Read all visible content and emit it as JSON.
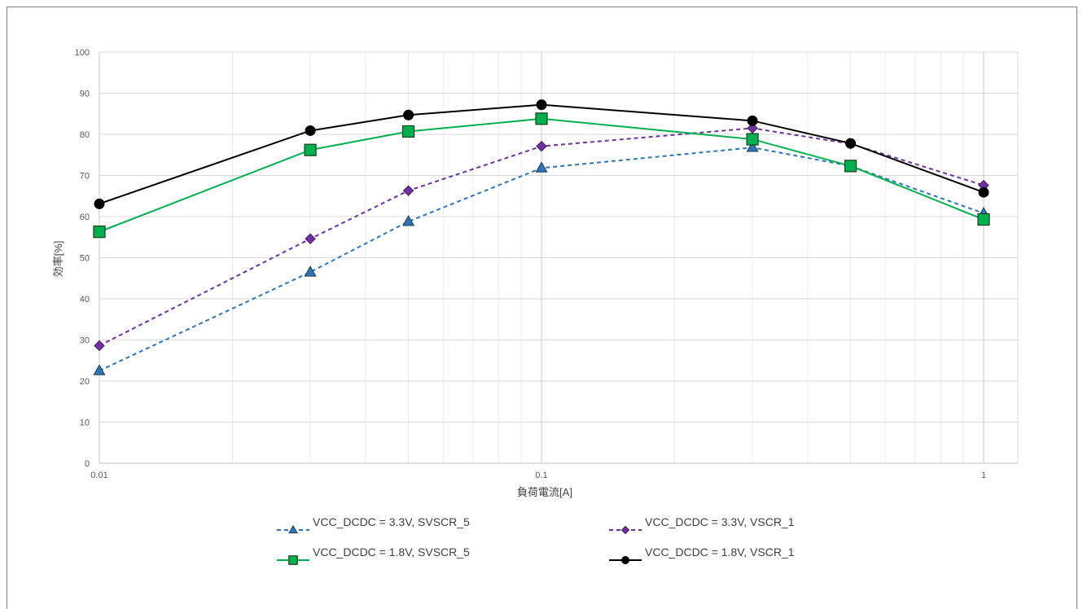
{
  "chart_data": {
    "type": "line",
    "title": "",
    "xlabel": "負荷電流[A]",
    "ylabel": "効率[%]",
    "xscale": "log",
    "xlim": [
      0.01,
      1.3
    ],
    "ylim": [
      0,
      100
    ],
    "yticks": [
      0,
      10,
      20,
      30,
      40,
      50,
      60,
      70,
      80,
      90,
      100
    ],
    "xticks": [
      {
        "value": 0.01,
        "label": "0.01"
      },
      {
        "value": 0.1,
        "label": "0.1"
      },
      {
        "value": 1,
        "label": "1"
      }
    ],
    "grid": true,
    "legend_position": "bottom",
    "x": [
      0.01,
      0.03,
      0.05,
      0.1,
      0.3,
      0.5,
      1
    ],
    "series": [
      {
        "name": "VCC_DCDC = 3.3V, SVSCR_5",
        "values": [
          22.5,
          46.5,
          58.8,
          71.8,
          76.8,
          72.3,
          60.8
        ],
        "color": "#2E75B6",
        "dash": "dashed",
        "marker": "triangle"
      },
      {
        "name": "VCC_DCDC = 3.3V, VSCR_1",
        "values": [
          28.6,
          54.6,
          66.3,
          77.1,
          81.5,
          77.7,
          67.6
        ],
        "color": "#7030A0",
        "dash": "dashed",
        "marker": "diamond"
      },
      {
        "name": "VCC_DCDC = 1.8V, SVSCR_5",
        "values": [
          56.3,
          76.2,
          80.7,
          83.8,
          78.8,
          72.3,
          59.3
        ],
        "color": "#00B050",
        "dash": "solid",
        "marker": "square"
      },
      {
        "name": "VCC_DCDC = 1.8V, VSCR_1",
        "values": [
          63.1,
          80.9,
          84.7,
          87.2,
          83.3,
          77.8,
          65.9
        ],
        "color": "#000000",
        "dash": "solid",
        "marker": "circle"
      }
    ]
  }
}
